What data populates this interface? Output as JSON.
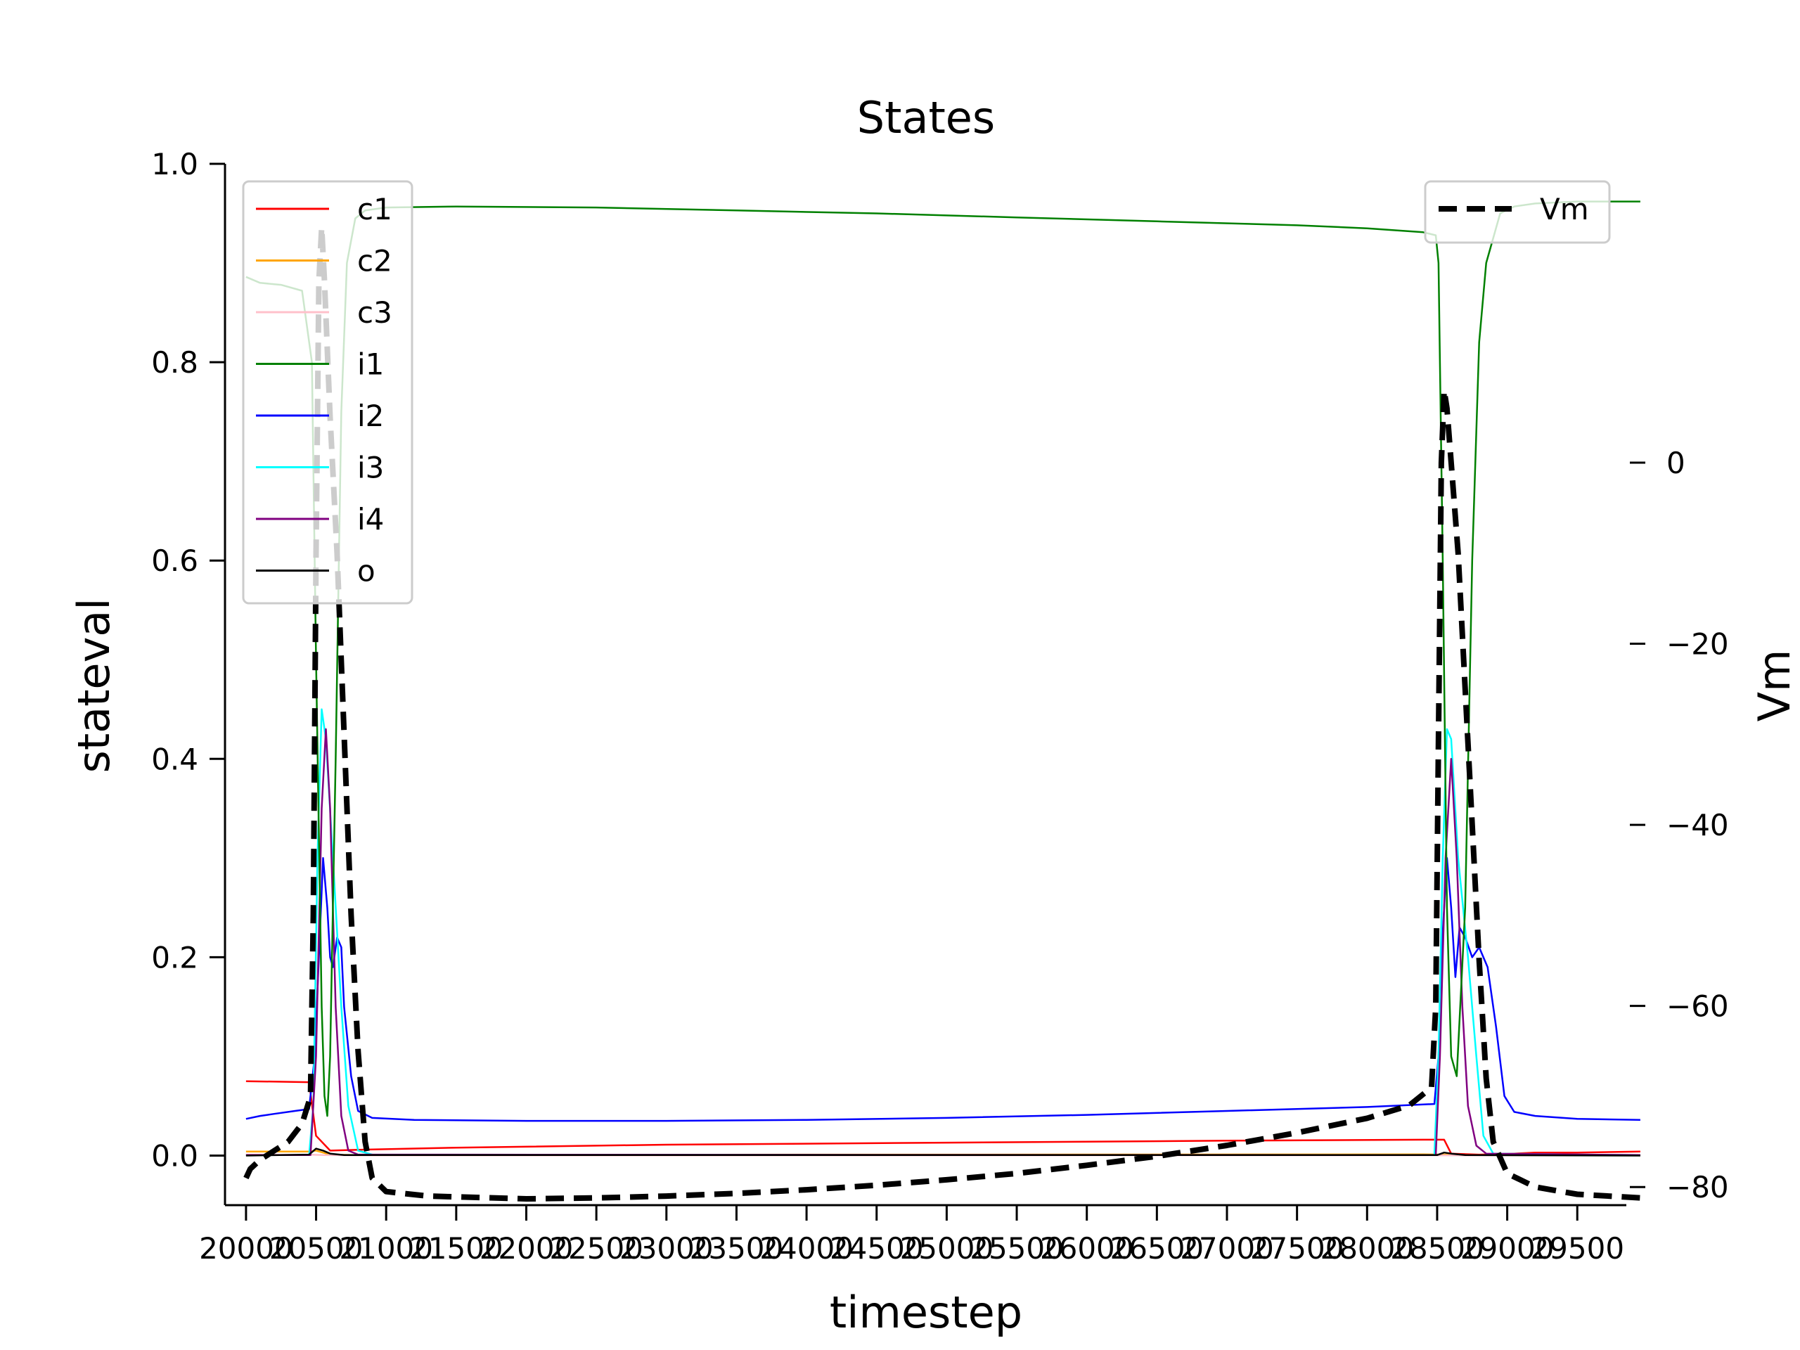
{
  "chart_data": {
    "type": "line",
    "title": "States",
    "xlabel": "timestep",
    "ylabel": "stateval",
    "y2label": "Vm",
    "xlim": [
      19850,
      29850
    ],
    "ylim": [
      -0.05,
      1.0
    ],
    "y2lim": [
      -82.0,
      33.0
    ],
    "x_ticks": [
      "20000",
      "20500",
      "21000",
      "21500",
      "22000",
      "22500",
      "23000",
      "23500",
      "24000",
      "24500",
      "25000",
      "25500",
      "26000",
      "26500",
      "27000",
      "27500",
      "28000",
      "28500",
      "29000",
      "29500"
    ],
    "y_ticks": [
      "0.0",
      "0.2",
      "0.4",
      "0.6",
      "0.8",
      "1.0"
    ],
    "y2_ticks": [
      "0",
      "−20",
      "−40",
      "−60",
      "−80"
    ],
    "legend_left": {
      "position": "upper-left",
      "entries": [
        "c1",
        "c2",
        "c3",
        "i1",
        "i2",
        "i3",
        "i4",
        "o"
      ]
    },
    "legend_right": {
      "position": "upper-right",
      "entries": [
        "Vm"
      ]
    },
    "grid": false,
    "colors": {
      "c1": "#ff0000",
      "c2": "#ffa500",
      "c3": "#ffc0cb",
      "i1": "#008000",
      "i2": "#0000ff",
      "i3": "#00ffff",
      "i4": "#800080",
      "o": "#000000",
      "Vm": "#000000"
    },
    "series": [
      {
        "name": "c1",
        "axis": "left",
        "points": [
          [
            20000,
            0.075
          ],
          [
            20450,
            0.074
          ],
          [
            20500,
            0.02
          ],
          [
            20600,
            0.005
          ],
          [
            20850,
            0.006
          ],
          [
            21500,
            0.008
          ],
          [
            23000,
            0.011
          ],
          [
            25000,
            0.013
          ],
          [
            27000,
            0.015
          ],
          [
            28400,
            0.016
          ],
          [
            28550,
            0.016
          ],
          [
            28600,
            0.002
          ],
          [
            28800,
            0.001
          ],
          [
            29050,
            0.002
          ],
          [
            29200,
            0.003
          ],
          [
            29500,
            0.003
          ],
          [
            29950,
            0.004
          ]
        ]
      },
      {
        "name": "c2",
        "axis": "left",
        "points": [
          [
            20000,
            0.004
          ],
          [
            20450,
            0.004
          ],
          [
            20500,
            0.005
          ],
          [
            20600,
            0.001
          ],
          [
            20800,
            0.0005
          ],
          [
            22000,
            0.0008
          ],
          [
            25000,
            0.001
          ],
          [
            28400,
            0.0012
          ],
          [
            28550,
            0.001
          ],
          [
            28700,
            0.0005
          ],
          [
            29950,
            0.0005
          ]
        ]
      },
      {
        "name": "c3",
        "axis": "left",
        "points": [
          [
            20000,
            0.001
          ],
          [
            20450,
            0.001
          ],
          [
            20550,
            0.0005
          ],
          [
            20800,
            0.0001
          ],
          [
            25000,
            0.0002
          ],
          [
            28500,
            0.0003
          ],
          [
            28700,
            0.0001
          ],
          [
            29950,
            0.0001
          ]
        ]
      },
      {
        "name": "i1",
        "axis": "left",
        "points": [
          [
            20000,
            0.886
          ],
          [
            20100,
            0.88
          ],
          [
            20250,
            0.878
          ],
          [
            20400,
            0.872
          ],
          [
            20470,
            0.8
          ],
          [
            20500,
            0.5
          ],
          [
            20540,
            0.15
          ],
          [
            20560,
            0.06
          ],
          [
            20580,
            0.04
          ],
          [
            20600,
            0.1
          ],
          [
            20640,
            0.4
          ],
          [
            20680,
            0.75
          ],
          [
            20720,
            0.9
          ],
          [
            20780,
            0.945
          ],
          [
            20850,
            0.953
          ],
          [
            21000,
            0.956
          ],
          [
            21500,
            0.957
          ],
          [
            22500,
            0.956
          ],
          [
            23500,
            0.953
          ],
          [
            24500,
            0.95
          ],
          [
            25500,
            0.946
          ],
          [
            26500,
            0.942
          ],
          [
            27500,
            0.938
          ],
          [
            28000,
            0.935
          ],
          [
            28400,
            0.931
          ],
          [
            28490,
            0.928
          ],
          [
            28510,
            0.9
          ],
          [
            28540,
            0.6
          ],
          [
            28570,
            0.25
          ],
          [
            28600,
            0.1
          ],
          [
            28640,
            0.08
          ],
          [
            28700,
            0.25
          ],
          [
            28750,
            0.6
          ],
          [
            28800,
            0.82
          ],
          [
            28850,
            0.9
          ],
          [
            28950,
            0.95
          ],
          [
            29050,
            0.957
          ],
          [
            29200,
            0.96
          ],
          [
            29500,
            0.962
          ],
          [
            29950,
            0.962
          ]
        ]
      },
      {
        "name": "i2",
        "axis": "left",
        "points": [
          [
            20000,
            0.037
          ],
          [
            20100,
            0.04
          ],
          [
            20200,
            0.042
          ],
          [
            20350,
            0.045
          ],
          [
            20450,
            0.047
          ],
          [
            20490,
            0.1
          ],
          [
            20520,
            0.2
          ],
          [
            20550,
            0.3
          ],
          [
            20580,
            0.25
          ],
          [
            20600,
            0.2
          ],
          [
            20620,
            0.19
          ],
          [
            20650,
            0.22
          ],
          [
            20680,
            0.21
          ],
          [
            20700,
            0.15
          ],
          [
            20750,
            0.08
          ],
          [
            20800,
            0.045
          ],
          [
            20900,
            0.038
          ],
          [
            21200,
            0.036
          ],
          [
            22000,
            0.035
          ],
          [
            23000,
            0.035
          ],
          [
            24000,
            0.036
          ],
          [
            25000,
            0.038
          ],
          [
            26000,
            0.041
          ],
          [
            27000,
            0.045
          ],
          [
            28000,
            0.049
          ],
          [
            28480,
            0.052
          ],
          [
            28510,
            0.1
          ],
          [
            28530,
            0.2
          ],
          [
            28570,
            0.3
          ],
          [
            28600,
            0.25
          ],
          [
            28630,
            0.18
          ],
          [
            28660,
            0.23
          ],
          [
            28700,
            0.22
          ],
          [
            28750,
            0.2
          ],
          [
            28800,
            0.21
          ],
          [
            28860,
            0.19
          ],
          [
            28920,
            0.13
          ],
          [
            28980,
            0.06
          ],
          [
            29050,
            0.044
          ],
          [
            29200,
            0.04
          ],
          [
            29500,
            0.037
          ],
          [
            29950,
            0.036
          ]
        ]
      },
      {
        "name": "i3",
        "axis": "left",
        "points": [
          [
            20000,
            0.0005
          ],
          [
            20450,
            0.0005
          ],
          [
            20480,
            0.05
          ],
          [
            20510,
            0.3
          ],
          [
            20540,
            0.45
          ],
          [
            20570,
            0.42
          ],
          [
            20620,
            0.3
          ],
          [
            20680,
            0.15
          ],
          [
            20730,
            0.05
          ],
          [
            20800,
            0.005
          ],
          [
            20900,
            0.001
          ],
          [
            25000,
            0.0005
          ],
          [
            28480,
            0.0005
          ],
          [
            28510,
            0.1
          ],
          [
            28540,
            0.3
          ],
          [
            28570,
            0.43
          ],
          [
            28600,
            0.42
          ],
          [
            28650,
            0.3
          ],
          [
            28720,
            0.2
          ],
          [
            28780,
            0.1
          ],
          [
            28830,
            0.02
          ],
          [
            28900,
            0.002
          ],
          [
            29950,
            0.0005
          ]
        ]
      },
      {
        "name": "i4",
        "axis": "left",
        "points": [
          [
            20000,
            0.0005
          ],
          [
            20460,
            0.0005
          ],
          [
            20500,
            0.1
          ],
          [
            20540,
            0.35
          ],
          [
            20570,
            0.43
          ],
          [
            20600,
            0.35
          ],
          [
            20640,
            0.15
          ],
          [
            20680,
            0.04
          ],
          [
            20730,
            0.005
          ],
          [
            20800,
            0.001
          ],
          [
            28490,
            0.0005
          ],
          [
            28520,
            0.1
          ],
          [
            28560,
            0.3
          ],
          [
            28600,
            0.4
          ],
          [
            28640,
            0.3
          ],
          [
            28680,
            0.15
          ],
          [
            28720,
            0.05
          ],
          [
            28780,
            0.01
          ],
          [
            28850,
            0.002
          ],
          [
            29950,
            0.0005
          ]
        ]
      },
      {
        "name": "o",
        "axis": "left",
        "points": [
          [
            20000,
            0.0
          ],
          [
            20450,
            0.001
          ],
          [
            20500,
            0.007
          ],
          [
            20550,
            0.005
          ],
          [
            20600,
            0.002
          ],
          [
            20700,
            0.0005
          ],
          [
            28500,
            0.0005
          ],
          [
            28550,
            0.003
          ],
          [
            28600,
            0.002
          ],
          [
            28700,
            0.0005
          ],
          [
            29950,
            0.0
          ]
        ]
      },
      {
        "name": "Vm",
        "axis": "right",
        "dashed": true,
        "points": [
          [
            20000,
            -79
          ],
          [
            20030,
            -78
          ],
          [
            20100,
            -77
          ],
          [
            20200,
            -76
          ],
          [
            20300,
            -75
          ],
          [
            20400,
            -73
          ],
          [
            20460,
            -70
          ],
          [
            20480,
            -50
          ],
          [
            20500,
            -10
          ],
          [
            20520,
            20
          ],
          [
            20540,
            26
          ],
          [
            20560,
            20
          ],
          [
            20600,
            5
          ],
          [
            20650,
            -10
          ],
          [
            20700,
            -30
          ],
          [
            20750,
            -50
          ],
          [
            20800,
            -65
          ],
          [
            20850,
            -75
          ],
          [
            20900,
            -79
          ],
          [
            21000,
            -80.5
          ],
          [
            21300,
            -81
          ],
          [
            22000,
            -81.3
          ],
          [
            22500,
            -81.2
          ],
          [
            23000,
            -81
          ],
          [
            23500,
            -80.7
          ],
          [
            24000,
            -80.3
          ],
          [
            24500,
            -79.8
          ],
          [
            25000,
            -79.2
          ],
          [
            25500,
            -78.5
          ],
          [
            26000,
            -77.6
          ],
          [
            26500,
            -76.6
          ],
          [
            27000,
            -75.4
          ],
          [
            27500,
            -74
          ],
          [
            28000,
            -72.4
          ],
          [
            28300,
            -71
          ],
          [
            28460,
            -69
          ],
          [
            28490,
            -60
          ],
          [
            28510,
            -30
          ],
          [
            28530,
            0
          ],
          [
            28550,
            8
          ],
          [
            28570,
            6
          ],
          [
            28600,
            0
          ],
          [
            28650,
            -10
          ],
          [
            28700,
            -25
          ],
          [
            28750,
            -40
          ],
          [
            28800,
            -55
          ],
          [
            28850,
            -68
          ],
          [
            28900,
            -75
          ],
          [
            29000,
            -78.5
          ],
          [
            29200,
            -80
          ],
          [
            29500,
            -80.8
          ],
          [
            29950,
            -81.2
          ]
        ]
      }
    ]
  }
}
